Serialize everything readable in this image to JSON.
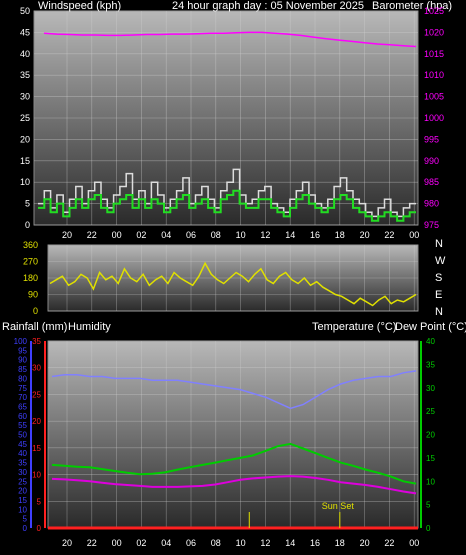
{
  "top": {
    "left_title": "Windspeed (kph)",
    "center_title": "24 hour graph day : 05 November 2025",
    "right_title": "Barometer (hpa)"
  },
  "mid": {
    "compass": [
      "N",
      "W",
      "S",
      "E",
      "N"
    ]
  },
  "bottom": {
    "left_title1": "Rainfall (mm)",
    "left_title2": "Humidity",
    "right_title1": "Temperature (°C)",
    "right_title2": "Dew Point (°C)",
    "annotation": "Sun Set"
  },
  "colors": {
    "bg": "#000000",
    "barometer": "#ff00ff",
    "wind_gust": "#dddddd",
    "wind_avg": "#22dd22",
    "direction": "#e0e000",
    "humidity": "#8080ff",
    "temperature": "#00cc00",
    "dewpoint": "#dd00dd",
    "rain": "#ff2020",
    "axis_blue": "#3f3fff",
    "axis_green": "#00cc00"
  },
  "chart_data": [
    {
      "type": "line",
      "title": "24 hour graph day : 05 November 2025",
      "ylabel": "Windspeed (kph)",
      "y2label": "Barometer (hpa)",
      "x_ticks": [
        "20",
        "22",
        "00",
        "02",
        "04",
        "06",
        "08",
        "10",
        "12",
        "14",
        "16",
        "18",
        "20",
        "22",
        "00"
      ],
      "ylim": [
        0,
        50
      ],
      "y_ticks": [
        "0",
        "5",
        "10",
        "15",
        "20",
        "25",
        "30",
        "35",
        "40",
        "45",
        "50"
      ],
      "y2lim": [
        975,
        1025
      ],
      "y2_ticks": [
        "975",
        "980",
        "985",
        "990",
        "995",
        "1000",
        "1005",
        "1010",
        "1015",
        "1020",
        "1025"
      ],
      "series": [
        {
          "name": "Windspeed (kph)",
          "role": "gust",
          "values": [
            5,
            8,
            4,
            7,
            3,
            6,
            9,
            5,
            8,
            10,
            6,
            4,
            7,
            9,
            12,
            6,
            8,
            5,
            10,
            7,
            4,
            6,
            8,
            11,
            5,
            7,
            9,
            6,
            4,
            8,
            10,
            13,
            7,
            5,
            6,
            8,
            9,
            5,
            4,
            3,
            6,
            8,
            10,
            7,
            5,
            4,
            6,
            9,
            11,
            8,
            6,
            5,
            3,
            2,
            4,
            6,
            3,
            2,
            4,
            5
          ]
        },
        {
          "name": "",
          "role": "average",
          "values": [
            4,
            6,
            3,
            5,
            2,
            4,
            6,
            4,
            6,
            7,
            4,
            3,
            5,
            6,
            7,
            4,
            6,
            4,
            6,
            5,
            3,
            4,
            6,
            7,
            4,
            5,
            6,
            4,
            3,
            6,
            7,
            8,
            5,
            4,
            4,
            6,
            6,
            4,
            3,
            2,
            4,
            6,
            7,
            5,
            4,
            3,
            4,
            6,
            7,
            6,
            4,
            3,
            2,
            1,
            2,
            3,
            2,
            1,
            2,
            3
          ]
        },
        {
          "name": "Barometer (hpa)",
          "axis": "right",
          "values": [
            1019.8,
            1019.6,
            1019.5,
            1019.4,
            1019.4,
            1019.3,
            1019.3,
            1019.4,
            1019.5,
            1019.5,
            1019.6,
            1019.6,
            1019.7,
            1019.8,
            1019.8,
            1019.9,
            1020.0,
            1020.0,
            1019.8,
            1019.6,
            1019.3,
            1018.9,
            1018.5,
            1018.2,
            1017.9,
            1017.6,
            1017.3,
            1017.1,
            1016.9,
            1016.7
          ]
        }
      ]
    },
    {
      "type": "line",
      "ylim": [
        0,
        360
      ],
      "y_ticks": [
        "0",
        "90",
        "180",
        "270",
        "360"
      ],
      "series": [
        {
          "name": "",
          "values": [
            150,
            170,
            190,
            140,
            160,
            200,
            180,
            120,
            210,
            170,
            190,
            150,
            230,
            180,
            160,
            200,
            140,
            170,
            190,
            150,
            210,
            180,
            160,
            140,
            190,
            260,
            200,
            170,
            150,
            180,
            210,
            190,
            160,
            200,
            230,
            170,
            150,
            190,
            210,
            170,
            150,
            180,
            140,
            160,
            130,
            110,
            90,
            80,
            60,
            40,
            70,
            50,
            30,
            60,
            80,
            40,
            60,
            50,
            70,
            90
          ]
        }
      ]
    },
    {
      "type": "line",
      "x_ticks": [
        "20",
        "22",
        "00",
        "02",
        "04",
        "06",
        "08",
        "10",
        "12",
        "14",
        "16",
        "18",
        "20",
        "22",
        "00"
      ],
      "ylim": [
        0,
        100
      ],
      "y_ticks": [
        "0",
        "5",
        "10",
        "15",
        "20",
        "25",
        "30",
        "35",
        "40",
        "45",
        "50",
        "55",
        "60",
        "65",
        "70",
        "75",
        "80",
        "85",
        "90",
        "95",
        "100"
      ],
      "y2lim": [
        0,
        35
      ],
      "y2_ticks": [
        "0",
        "5",
        "10",
        "15",
        "20",
        "25",
        "30",
        "35"
      ],
      "y3lim": [
        0,
        40
      ],
      "y3_ticks": [
        "0",
        "5",
        "10",
        "15",
        "20",
        "25",
        "30",
        "35",
        "40"
      ],
      "series": [
        {
          "name": "Humidity",
          "axis": "left",
          "values": [
            81,
            82,
            82,
            81,
            81,
            80,
            80,
            80,
            79,
            79,
            79,
            78,
            77,
            76,
            75,
            74,
            72,
            70,
            67,
            64,
            66,
            70,
            74,
            77,
            79,
            80,
            81,
            81,
            83,
            84
          ]
        },
        {
          "name": "Rainfall (mm)",
          "axis": "left-red",
          "values": [
            0,
            0,
            0,
            0,
            0,
            0,
            0,
            0,
            0,
            0,
            0,
            0,
            0,
            0,
            0,
            0,
            0,
            0,
            0,
            0,
            0,
            0,
            0,
            0,
            0,
            0,
            0,
            0,
            0,
            0
          ]
        },
        {
          "name": "Temperature (°C)",
          "axis": "right",
          "values": [
            13.5,
            13.3,
            13.1,
            13.0,
            12.6,
            12.2,
            11.8,
            11.5,
            11.6,
            11.9,
            12.5,
            13.0,
            13.5,
            14.0,
            14.5,
            15.0,
            15.5,
            16.5,
            17.5,
            18.0,
            17.0,
            16.0,
            15.0,
            14.0,
            13.3,
            12.5,
            11.8,
            11.0,
            10.0,
            9.5
          ]
        },
        {
          "name": "Dew Point (°C)",
          "axis": "right",
          "values": [
            10.5,
            10.4,
            10.2,
            10.0,
            9.7,
            9.4,
            9.2,
            9.0,
            8.8,
            8.8,
            8.8,
            8.9,
            9.0,
            9.3,
            9.8,
            10.3,
            10.6,
            10.8,
            11.0,
            11.1,
            11.0,
            10.7,
            10.3,
            9.8,
            9.5,
            9.2,
            8.8,
            8.3,
            7.8,
            7.4
          ]
        }
      ],
      "annotations": [
        {
          "label": "Sun Set",
          "x": "18"
        }
      ]
    }
  ]
}
